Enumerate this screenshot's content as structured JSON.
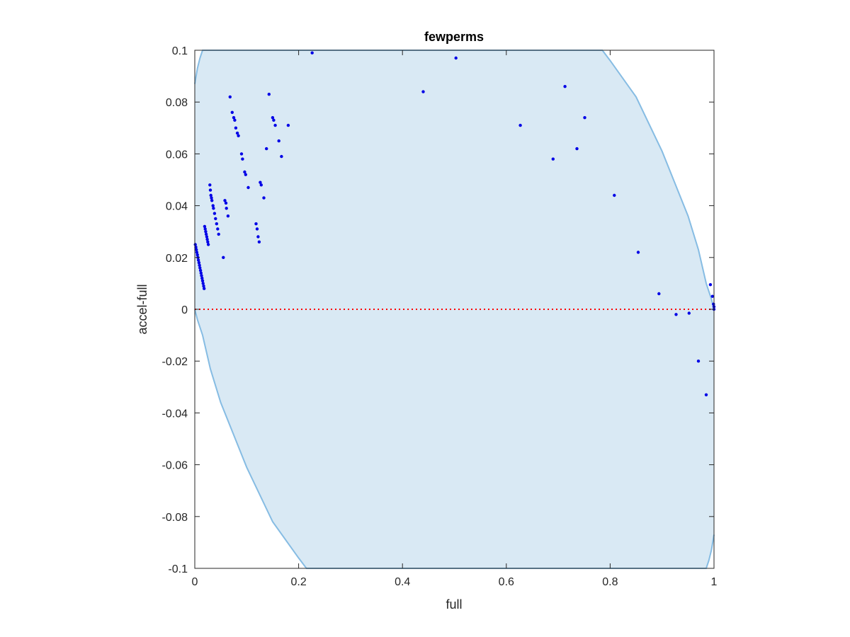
{
  "chart_data": {
    "type": "scatter",
    "title": "fewperms",
    "xlabel": "full",
    "ylabel": "accel-full",
    "xlim": [
      0,
      1
    ],
    "ylim": [
      -0.1,
      0.1
    ],
    "xticks": [
      0,
      0.2,
      0.4,
      0.6,
      0.8,
      1
    ],
    "xtick_labels": [
      "0",
      "0.2",
      "0.4",
      "0.6",
      "0.8",
      "1"
    ],
    "yticks": [
      -0.1,
      -0.08,
      -0.06,
      -0.04,
      -0.02,
      0,
      0.02,
      0.04,
      0.06,
      0.08,
      0.1
    ],
    "ytick_labels": [
      "-0.1",
      "-0.08",
      "-0.06",
      "-0.04",
      "-0.02",
      "0",
      "0.02",
      "0.04",
      "0.06",
      "0.08",
      "0.1"
    ],
    "grid": false,
    "colors": {
      "points": "#0000e6",
      "region_fill": "#d9e9f4",
      "region_edge": "#86bce3",
      "zero_line": "#ff0000",
      "axes": "#262626"
    },
    "reference_line": {
      "y": 0,
      "style": "dotted"
    },
    "region_boundary": {
      "upper": [
        [
          0,
          0.087
        ],
        [
          0.005,
          0.093
        ],
        [
          0.01,
          0.097
        ],
        [
          0.015,
          0.1
        ],
        [
          0.785,
          0.1
        ],
        [
          0.8,
          0.096
        ],
        [
          0.85,
          0.082
        ],
        [
          0.9,
          0.061
        ],
        [
          0.95,
          0.036
        ],
        [
          0.97,
          0.023
        ],
        [
          0.985,
          0.01
        ],
        [
          0.995,
          0.004
        ],
        [
          1,
          0
        ]
      ],
      "lower": [
        [
          1,
          -0.087
        ],
        [
          0.995,
          -0.093
        ],
        [
          0.99,
          -0.097
        ],
        [
          0.985,
          -0.1
        ],
        [
          0.215,
          -0.1
        ],
        [
          0.2,
          -0.096
        ],
        [
          0.15,
          -0.082
        ],
        [
          0.1,
          -0.061
        ],
        [
          0.05,
          -0.036
        ],
        [
          0.03,
          -0.023
        ],
        [
          0.015,
          -0.01
        ],
        [
          0.005,
          -0.004
        ],
        [
          0,
          0
        ]
      ]
    },
    "points": [
      [
        0.001,
        0.025
      ],
      [
        0.002,
        0.024
      ],
      [
        0.003,
        0.023
      ],
      [
        0.004,
        0.022
      ],
      [
        0.005,
        0.021
      ],
      [
        0.006,
        0.02
      ],
      [
        0.007,
        0.019
      ],
      [
        0.008,
        0.018
      ],
      [
        0.009,
        0.017
      ],
      [
        0.01,
        0.016
      ],
      [
        0.011,
        0.015
      ],
      [
        0.012,
        0.014
      ],
      [
        0.013,
        0.013
      ],
      [
        0.014,
        0.012
      ],
      [
        0.015,
        0.011
      ],
      [
        0.016,
        0.01
      ],
      [
        0.017,
        0.009
      ],
      [
        0.018,
        0.008
      ],
      [
        0.019,
        0.032
      ],
      [
        0.02,
        0.031
      ],
      [
        0.021,
        0.03
      ],
      [
        0.022,
        0.029
      ],
      [
        0.023,
        0.028
      ],
      [
        0.024,
        0.027
      ],
      [
        0.025,
        0.026
      ],
      [
        0.026,
        0.025
      ],
      [
        0.029,
        0.048
      ],
      [
        0.03,
        0.046
      ],
      [
        0.031,
        0.044
      ],
      [
        0.032,
        0.043
      ],
      [
        0.033,
        0.042
      ],
      [
        0.035,
        0.04
      ],
      [
        0.036,
        0.039
      ],
      [
        0.038,
        0.037
      ],
      [
        0.04,
        0.035
      ],
      [
        0.042,
        0.033
      ],
      [
        0.044,
        0.031
      ],
      [
        0.046,
        0.029
      ],
      [
        0.055,
        0.02
      ],
      [
        0.058,
        0.042
      ],
      [
        0.06,
        0.041
      ],
      [
        0.061,
        0.039
      ],
      [
        0.064,
        0.036
      ],
      [
        0.068,
        0.082
      ],
      [
        0.072,
        0.076
      ],
      [
        0.075,
        0.074
      ],
      [
        0.077,
        0.073
      ],
      [
        0.079,
        0.07
      ],
      [
        0.082,
        0.068
      ],
      [
        0.084,
        0.067
      ],
      [
        0.09,
        0.06
      ],
      [
        0.092,
        0.058
      ],
      [
        0.096,
        0.053
      ],
      [
        0.098,
        0.052
      ],
      [
        0.103,
        0.047
      ],
      [
        0.118,
        0.033
      ],
      [
        0.12,
        0.031
      ],
      [
        0.122,
        0.028
      ],
      [
        0.124,
        0.026
      ],
      [
        0.126,
        0.049
      ],
      [
        0.128,
        0.048
      ],
      [
        0.133,
        0.043
      ],
      [
        0.138,
        0.062
      ],
      [
        0.143,
        0.083
      ],
      [
        0.15,
        0.074
      ],
      [
        0.152,
        0.073
      ],
      [
        0.155,
        0.071
      ],
      [
        0.162,
        0.065
      ],
      [
        0.167,
        0.059
      ],
      [
        0.18,
        0.071
      ],
      [
        0.226,
        0.099
      ],
      [
        0.44,
        0.084
      ],
      [
        0.503,
        0.097
      ],
      [
        0.627,
        0.071
      ],
      [
        0.69,
        0.058
      ],
      [
        0.713,
        0.086
      ],
      [
        0.736,
        0.062
      ],
      [
        0.751,
        0.074
      ],
      [
        0.808,
        0.044
      ],
      [
        0.854,
        0.022
      ],
      [
        0.894,
        0.006
      ],
      [
        0.927,
        -0.002
      ],
      [
        0.952,
        -0.0015
      ],
      [
        0.97,
        -0.02
      ],
      [
        0.985,
        -0.033
      ],
      [
        0.993,
        0.0095
      ],
      [
        0.997,
        0.005
      ],
      [
        0.999,
        0.002
      ],
      [
        1,
        0.001
      ],
      [
        1,
        0
      ]
    ]
  }
}
